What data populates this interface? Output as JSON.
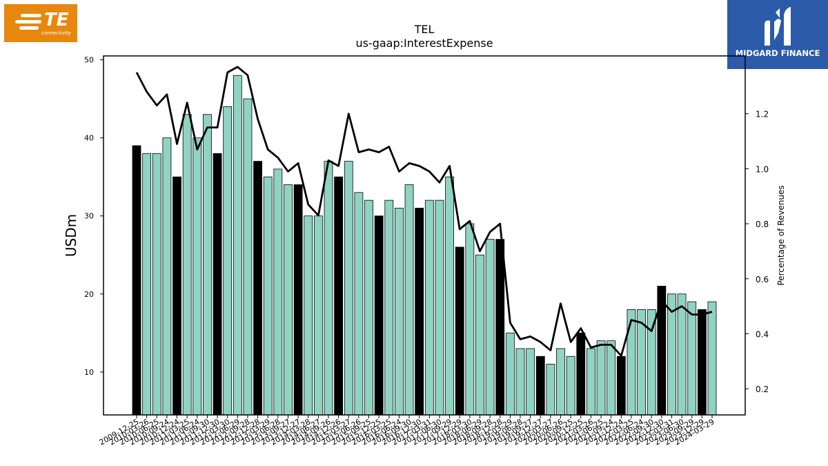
{
  "logos": {
    "left": {
      "text": "TE",
      "subtext": "connectivity",
      "color": "#e8870e"
    },
    "right": {
      "text": "MIDGARD FINANCE",
      "color": "#2b5aa8"
    }
  },
  "chart_data": {
    "type": "bar",
    "title": "TEL",
    "subtitle": "us-gaap:InterestExpense",
    "ylabel": "USDm",
    "ylabel_right": "Percentage of Revenues",
    "ylim": [
      4.5,
      50.5
    ],
    "ylim_right": [
      0.105,
      1.41
    ],
    "yticks": [
      10,
      20,
      30,
      40,
      50
    ],
    "yticks_right": [
      0.2,
      0.4,
      0.6,
      0.8,
      1.0,
      1.2
    ],
    "grid": false,
    "colors": {
      "annual": "#000000",
      "quarterly": "#8fd3c3",
      "line": "#000000"
    },
    "categories": [
      "2009-12-25",
      "2010-03-26",
      "2010-06-25",
      "2010-09-24",
      "2010-12-24",
      "2011-03-25",
      "2011-06-24",
      "2011-09-30",
      "2011-12-30",
      "2012-03-30",
      "2012-06-29",
      "2012-09-28",
      "2012-12-28",
      "2013-03-29",
      "2013-06-28",
      "2013-09-27",
      "2013-12-27",
      "2014-03-28",
      "2014-06-27",
      "2014-09-26",
      "2014-12-26",
      "2015-03-27",
      "2015-06-26",
      "2015-09-25",
      "2015-12-25",
      "2016-03-25",
      "2016-06-24",
      "2016-09-30",
      "2016-12-30",
      "2017-03-31",
      "2017-06-30",
      "2017-09-29",
      "2017-12-29",
      "2018-03-30",
      "2018-06-29",
      "2018-09-28",
      "2018-12-28",
      "2019-03-29",
      "2019-06-28",
      "2019-09-27",
      "2019-12-27",
      "2020-03-27",
      "2020-06-26",
      "2020-09-25",
      "2020-12-25",
      "2021-03-26",
      "2021-06-25",
      "2021-09-24",
      "2021-12-24",
      "2022-03-25",
      "2022-06-24",
      "2022-09-30",
      "2022-12-30",
      "2023-03-31",
      "2023-06-30",
      "2023-09-29",
      "2023-12-29",
      "2024-03-29"
    ],
    "series": [
      {
        "values": [
          39,
          38,
          38,
          40,
          35,
          43,
          40,
          43,
          38,
          44,
          48,
          45,
          37,
          35,
          36,
          34,
          34,
          30,
          30,
          37,
          35,
          37,
          33,
          32,
          30,
          32,
          31,
          34,
          31,
          32,
          32,
          35,
          26,
          29,
          25,
          27,
          27,
          15,
          13,
          13,
          12,
          11,
          13,
          12,
          15,
          13,
          14,
          14,
          12,
          18,
          18,
          18,
          21,
          20,
          20,
          19,
          18,
          19
        ]
      },
      {
        "values": [
          1.35,
          1.28,
          1.23,
          1.27,
          1.09,
          1.24,
          1.07,
          1.15,
          1.15,
          1.35,
          1.37,
          1.34,
          1.18,
          1.07,
          1.04,
          0.99,
          1.02,
          0.87,
          0.83,
          1.03,
          1.01,
          1.2,
          1.06,
          1.07,
          1.06,
          1.08,
          0.99,
          1.02,
          1.01,
          0.99,
          0.95,
          1.01,
          0.78,
          0.81,
          0.7,
          0.77,
          0.8,
          0.44,
          0.38,
          0.39,
          0.37,
          0.34,
          0.51,
          0.37,
          0.42,
          0.35,
          0.36,
          0.36,
          0.32,
          0.45,
          0.44,
          0.41,
          0.52,
          0.48,
          0.5,
          0.47,
          0.47,
          0.48
        ]
      }
    ],
    "annual_flags": [
      1,
      0,
      0,
      0,
      1,
      0,
      0,
      0,
      1,
      0,
      0,
      0,
      1,
      0,
      0,
      0,
      1,
      0,
      0,
      0,
      1,
      0,
      0,
      0,
      1,
      0,
      0,
      0,
      1,
      0,
      0,
      0,
      1,
      0,
      0,
      0,
      1,
      0,
      0,
      0,
      1,
      0,
      0,
      0,
      1,
      0,
      0,
      0,
      1,
      0,
      0,
      0,
      1,
      0,
      0,
      0,
      1,
      0
    ]
  }
}
